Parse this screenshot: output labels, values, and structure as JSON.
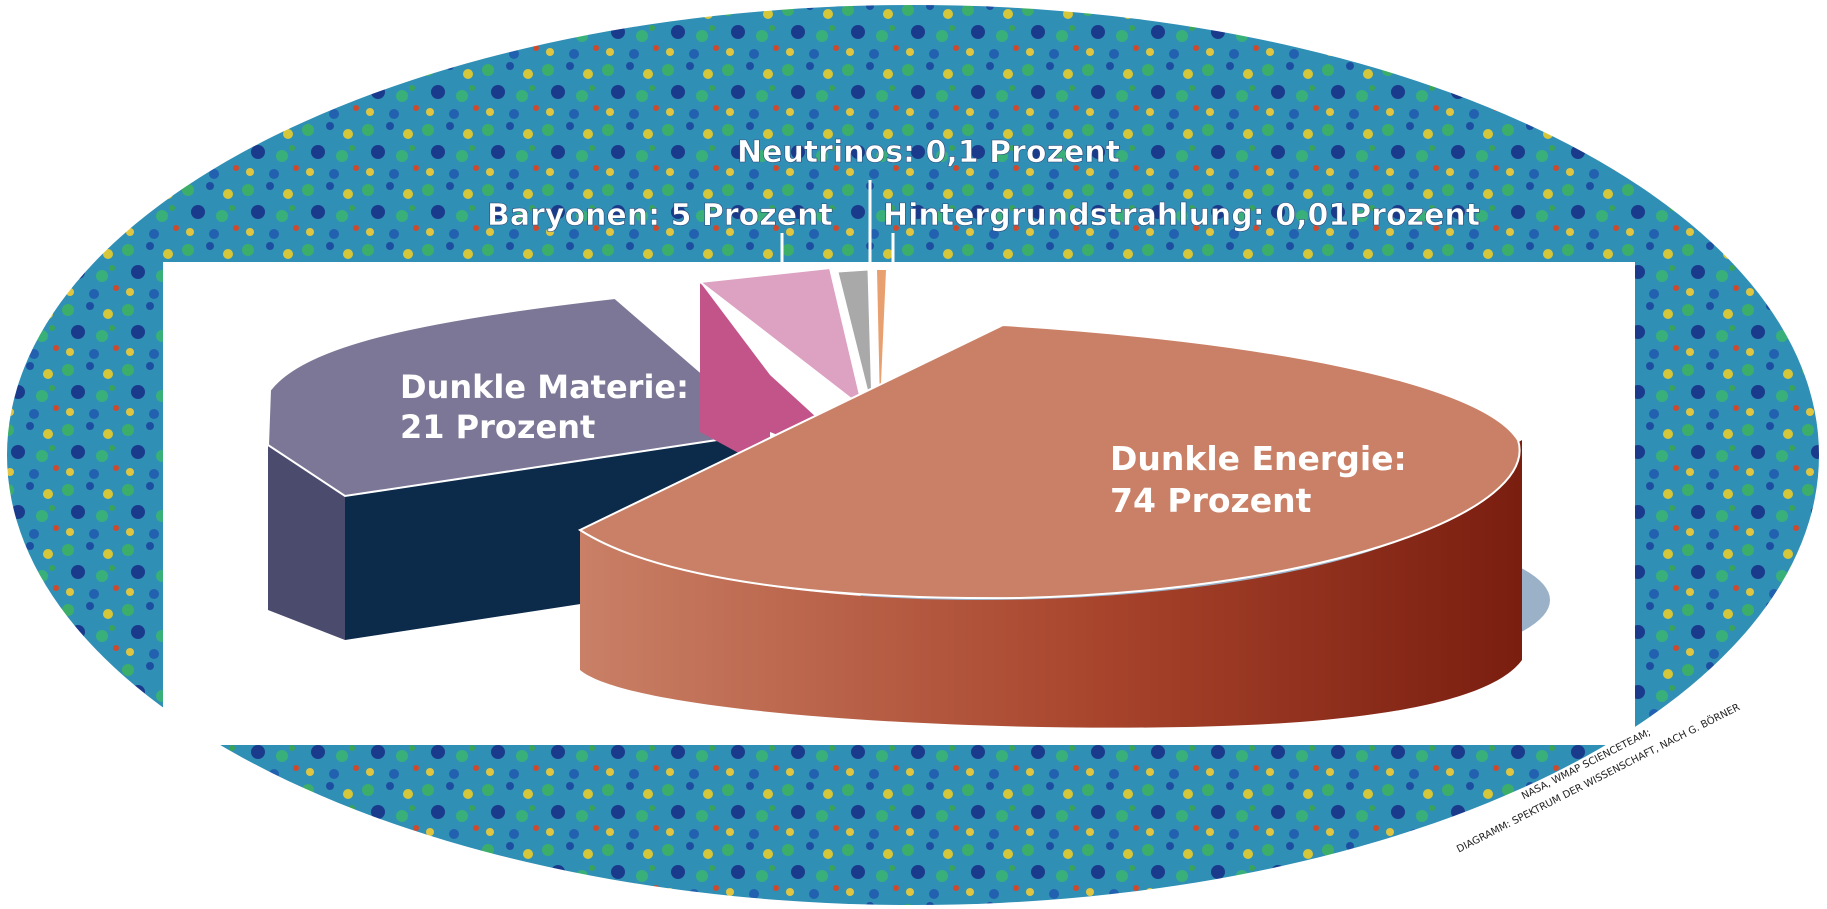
{
  "chart_data": {
    "type": "pie",
    "title": "",
    "slices": [
      {
        "label": "Dunkle Energie:",
        "value_label": "74 Prozent",
        "value": 74,
        "color_top": "#c98066",
        "color_side": "#8c2a1c"
      },
      {
        "label": "Dunkle Materie:",
        "value_label": "21 Prozent",
        "value": 21,
        "color_top": "#7c7796",
        "color_side": "#0c2a4a"
      },
      {
        "label": "Baryonen:",
        "value_label": "5 Prozent",
        "value": 5,
        "color_top": "#dda1c2",
        "color_side": "#c2548a"
      },
      {
        "label": "Neutrinos:",
        "value_label": "0,1 Prozent",
        "value": 0.1,
        "color_top": "#a9a9a9",
        "color_side": "#7d7d7d"
      },
      {
        "label": "Hintergrundstrahlung:",
        "value_label": "0,01Prozent",
        "value": 0.01,
        "color_top": "#e8a070",
        "color_side": "#b0643a"
      }
    ],
    "annotations": {
      "neutrinos": "Neutrinos: 0,1 Prozent",
      "baryonen": "Baryonen: 5 Prozent",
      "hintergrund": "Hintergrundstrahlung: 0,01Prozent",
      "materie_line1": "Dunkle Materie:",
      "materie_line2": "21 Prozent",
      "energie_line1": "Dunkle Energie:",
      "energie_line2": "74 Prozent"
    }
  },
  "credit": {
    "line1": "NASA, WMAP SCIENCETEAM;",
    "line2": "DIAGRAMM: SPEKTRUM DER WISSENSCHAFT, NACH G. BÖRNER"
  },
  "background": {
    "name": "WMAP cosmic microwave background sky map",
    "colors": [
      "#1a3a8c",
      "#2a6fc0",
      "#2fa3b0",
      "#3fb06a",
      "#d9c83a",
      "#d2442a"
    ]
  }
}
